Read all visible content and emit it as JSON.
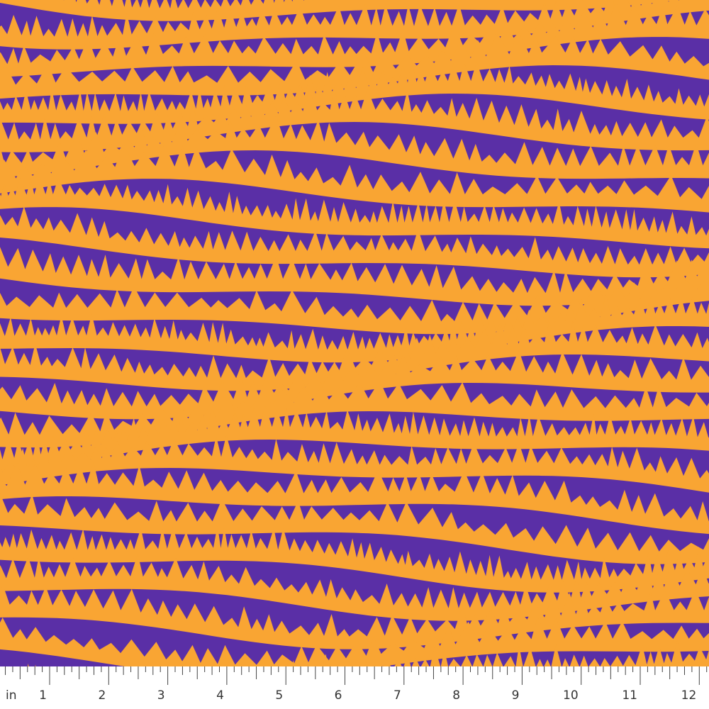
{
  "ruler": {
    "unit": "in",
    "labels": [
      "1",
      "2",
      "3",
      "4",
      "5",
      "6",
      "7",
      "8",
      "9",
      "10",
      "11",
      "12"
    ]
  }
}
